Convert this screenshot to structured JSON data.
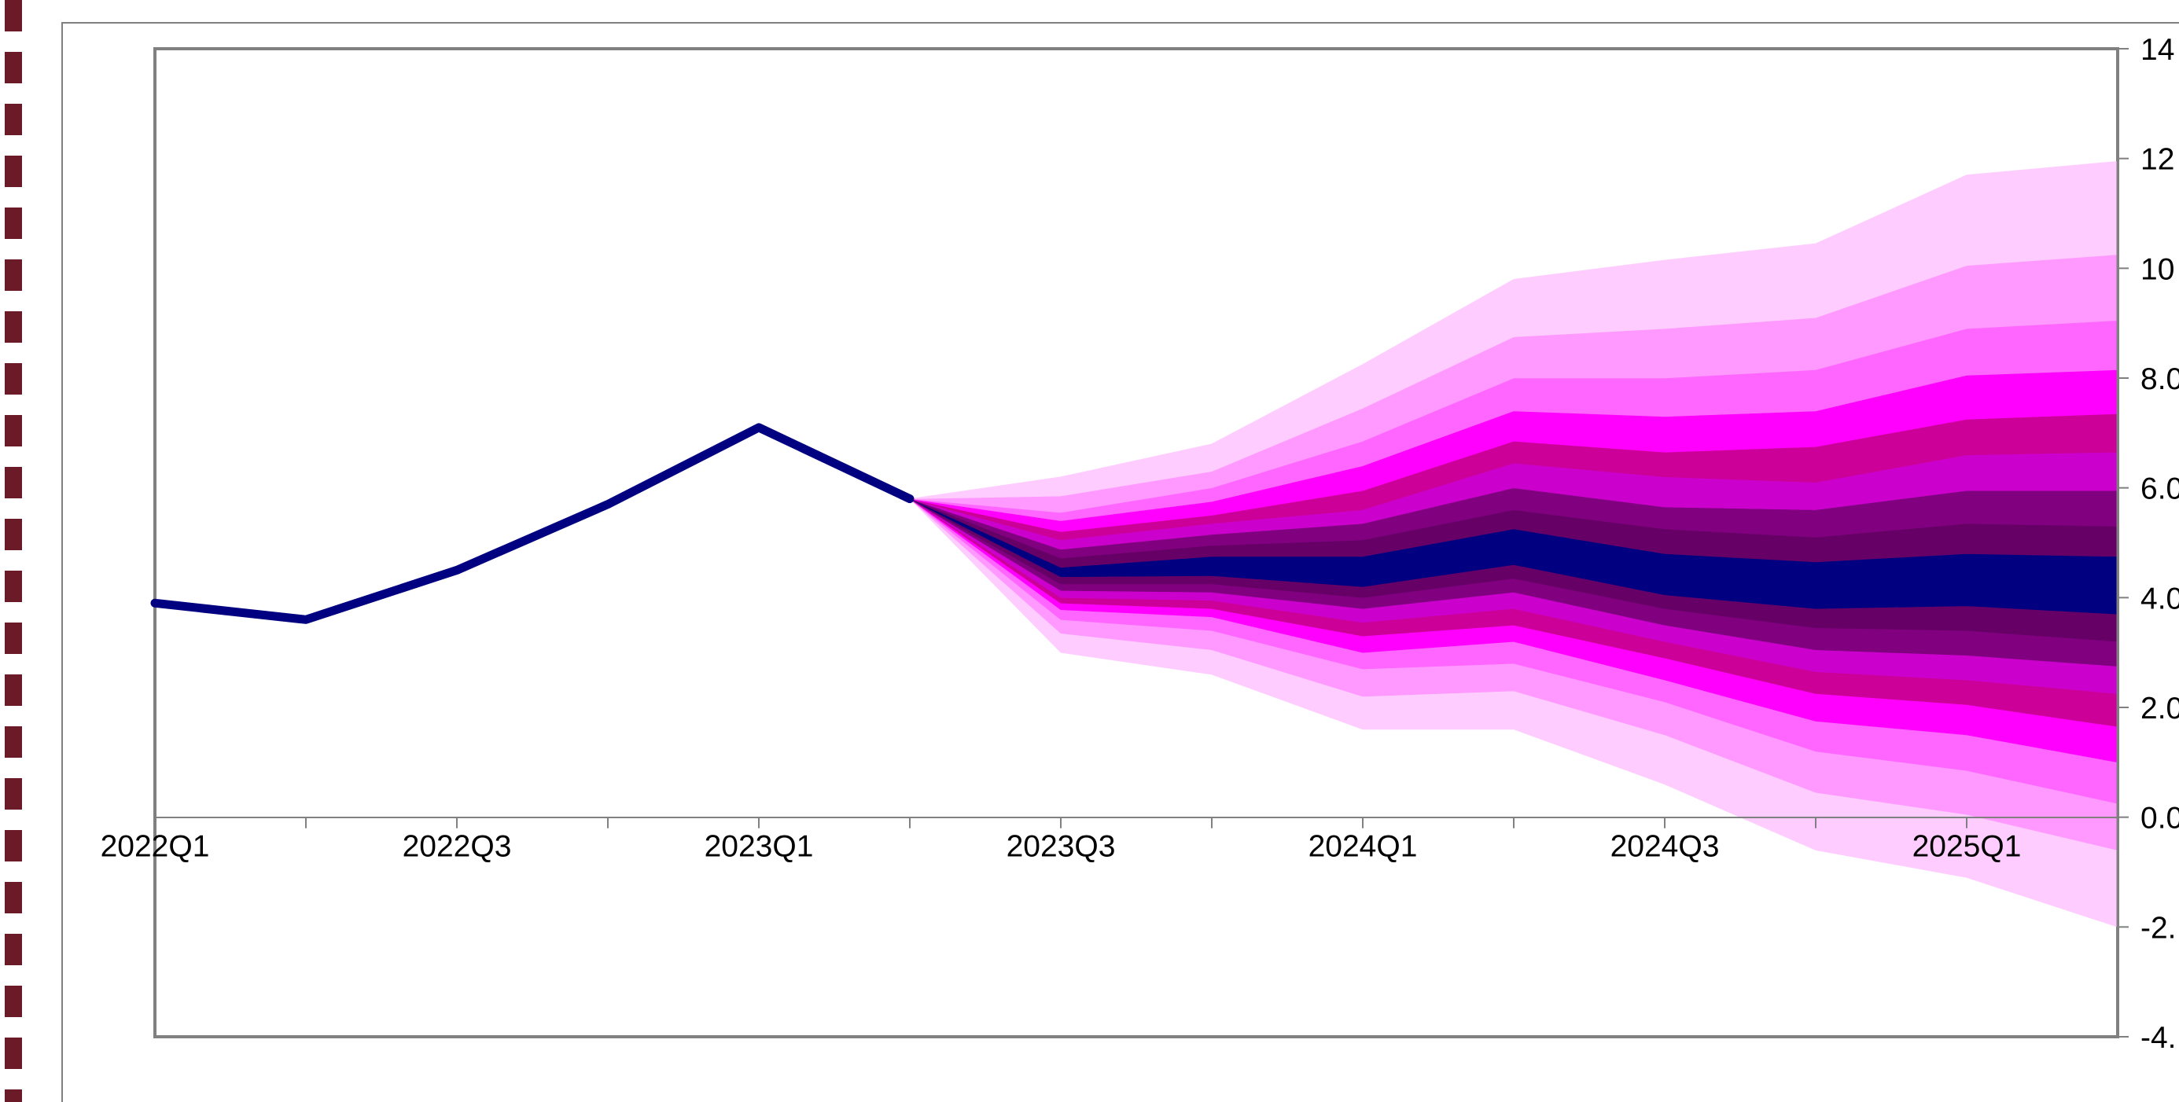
{
  "chart_data": {
    "type": "area",
    "title": "",
    "xlabel": "",
    "ylabel": "",
    "x_tick_labels": [
      "2022Q1",
      "2022Q3",
      "2023Q1",
      "2023Q3",
      "2024Q1",
      "2024Q3",
      "2025Q1"
    ],
    "y_tick_labels": [
      "14",
      "12",
      "10",
      "8.0",
      "6.0",
      "4.0",
      "2.0",
      "0.0",
      "-2.",
      "-4."
    ],
    "quarters": [
      "2022Q1",
      "2022Q2",
      "2022Q3",
      "2022Q4",
      "2023Q1",
      "2023Q2",
      "2023Q3",
      "2023Q4",
      "2024Q1",
      "2024Q2",
      "2024Q3",
      "2024Q4",
      "2025Q1",
      "2025Q2"
    ],
    "ylim": [
      -4,
      14
    ],
    "grid": false,
    "legend": "none",
    "y_axis_side": "right",
    "history": {
      "name": "",
      "color": "#000080",
      "x": [
        "2022Q1",
        "2022Q2",
        "2022Q3",
        "2022Q4",
        "2023Q1",
        "2023Q2"
      ],
      "values": [
        3.9,
        3.6,
        4.5,
        5.7,
        7.1,
        5.8
      ]
    },
    "fan": {
      "x": [
        "2023Q2",
        "2023Q3",
        "2023Q4",
        "2024Q1",
        "2024Q2",
        "2024Q3",
        "2024Q4",
        "2025Q1",
        "2025Q2"
      ],
      "band_colors": [
        "#ffccff",
        "#ff99ff",
        "#ff66ff",
        "#ff00ff",
        "#cc0099",
        "#cc00cc",
        "#800080",
        "#660066",
        "#000080"
      ],
      "bounds": [
        [
          5.8,
          3.0,
          2.6,
          1.6,
          1.6,
          0.6,
          -0.6,
          -1.1,
          -2.0
        ],
        [
          5.8,
          3.35,
          3.05,
          2.2,
          2.3,
          1.5,
          0.45,
          0.05,
          -0.6
        ],
        [
          5.8,
          3.6,
          3.4,
          2.7,
          2.8,
          2.1,
          1.2,
          0.85,
          0.25
        ],
        [
          5.8,
          3.78,
          3.65,
          3.0,
          3.2,
          2.5,
          1.75,
          1.5,
          1.0
        ],
        [
          5.8,
          3.9,
          3.8,
          3.3,
          3.5,
          2.9,
          2.25,
          2.05,
          1.65
        ],
        [
          5.8,
          4.0,
          3.95,
          3.55,
          3.8,
          3.2,
          2.65,
          2.5,
          2.25
        ],
        [
          5.8,
          4.13,
          4.1,
          3.8,
          4.1,
          3.5,
          3.05,
          2.95,
          2.75
        ],
        [
          5.8,
          4.25,
          4.25,
          4.0,
          4.35,
          3.8,
          3.45,
          3.4,
          3.2
        ],
        [
          5.8,
          4.38,
          4.4,
          4.2,
          4.6,
          4.05,
          3.8,
          3.85,
          3.7
        ],
        [
          5.8,
          4.55,
          4.75,
          4.75,
          5.25,
          4.8,
          4.65,
          4.8,
          4.75
        ],
        [
          5.8,
          4.72,
          4.95,
          5.05,
          5.6,
          5.25,
          5.1,
          5.35,
          5.3
        ],
        [
          5.8,
          4.88,
          5.15,
          5.35,
          6.0,
          5.65,
          5.6,
          5.95,
          5.95
        ],
        [
          5.8,
          5.05,
          5.35,
          5.6,
          6.45,
          6.2,
          6.1,
          6.6,
          6.65
        ],
        [
          5.8,
          5.2,
          5.5,
          5.95,
          6.85,
          6.65,
          6.75,
          7.25,
          7.35
        ],
        [
          5.8,
          5.4,
          5.75,
          6.4,
          7.4,
          7.3,
          7.4,
          8.05,
          8.15
        ],
        [
          5.8,
          5.55,
          6.0,
          6.85,
          8.0,
          8.0,
          8.15,
          8.9,
          9.05
        ],
        [
          5.8,
          5.85,
          6.3,
          7.45,
          8.75,
          8.9,
          9.1,
          10.05,
          10.25
        ],
        [
          5.8,
          6.2,
          6.8,
          8.25,
          9.8,
          10.15,
          10.45,
          11.7,
          11.95
        ]
      ]
    }
  }
}
